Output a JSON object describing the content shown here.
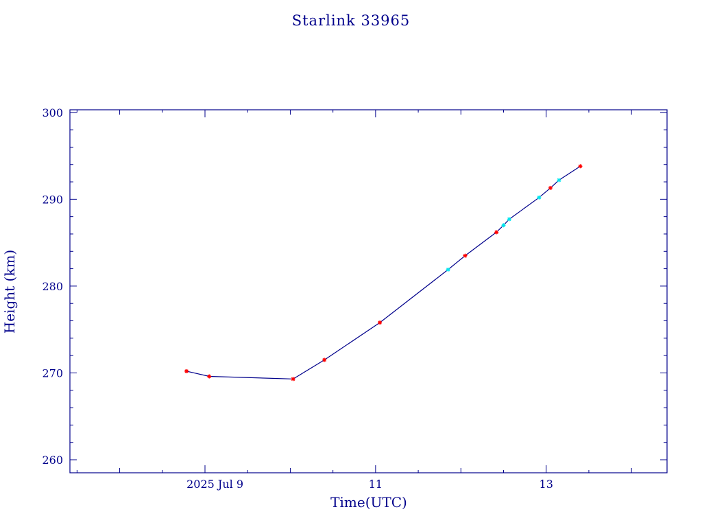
{
  "chart_data": {
    "type": "line",
    "title": "Starlink 33965",
    "xlabel": "Time(UTC)",
    "ylabel": "Height (km)",
    "xlim": [
      "2025-07-07T10:00",
      "2025-07-14T10:00"
    ],
    "ylim": [
      258.5,
      300.3
    ],
    "x_major_ticks": [
      {
        "x": "2025-07-09T00:00",
        "label": "2025 Jul  9"
      },
      {
        "x": "2025-07-11T00:00",
        "label": "11"
      },
      {
        "x": "2025-07-13T00:00",
        "label": "13"
      }
    ],
    "y_major_ticks": [
      {
        "y": 260,
        "label": "260"
      },
      {
        "y": 270,
        "label": "270"
      },
      {
        "y": 280,
        "label": "280"
      },
      {
        "y": 290,
        "label": "290"
      },
      {
        "y": 300,
        "label": "300"
      }
    ],
    "line_color": "#00008b",
    "series": [
      {
        "marker_color": "#ff0000",
        "points": [
          {
            "x": "2025-07-08T18:48",
            "y": 270.2
          },
          {
            "x": "2025-07-09T01:12",
            "y": 269.6
          },
          {
            "x": "2025-07-10T00:48",
            "y": 269.3
          },
          {
            "x": "2025-07-10T09:36",
            "y": 271.5
          },
          {
            "x": "2025-07-11T01:12",
            "y": 275.8
          },
          {
            "x": "2025-07-12T01:12",
            "y": 283.5
          },
          {
            "x": "2025-07-12T10:00",
            "y": 286.2
          },
          {
            "x": "2025-07-13T01:12",
            "y": 291.3
          },
          {
            "x": "2025-07-13T09:36",
            "y": 293.8
          }
        ]
      },
      {
        "marker_color": "#00e5ee",
        "points": [
          {
            "x": "2025-07-11T20:24",
            "y": 281.9
          },
          {
            "x": "2025-07-12T12:00",
            "y": 287.0
          },
          {
            "x": "2025-07-12T13:36",
            "y": 287.7
          },
          {
            "x": "2025-07-12T22:00",
            "y": 290.2
          },
          {
            "x": "2025-07-13T03:36",
            "y": 292.2
          }
        ]
      }
    ]
  }
}
